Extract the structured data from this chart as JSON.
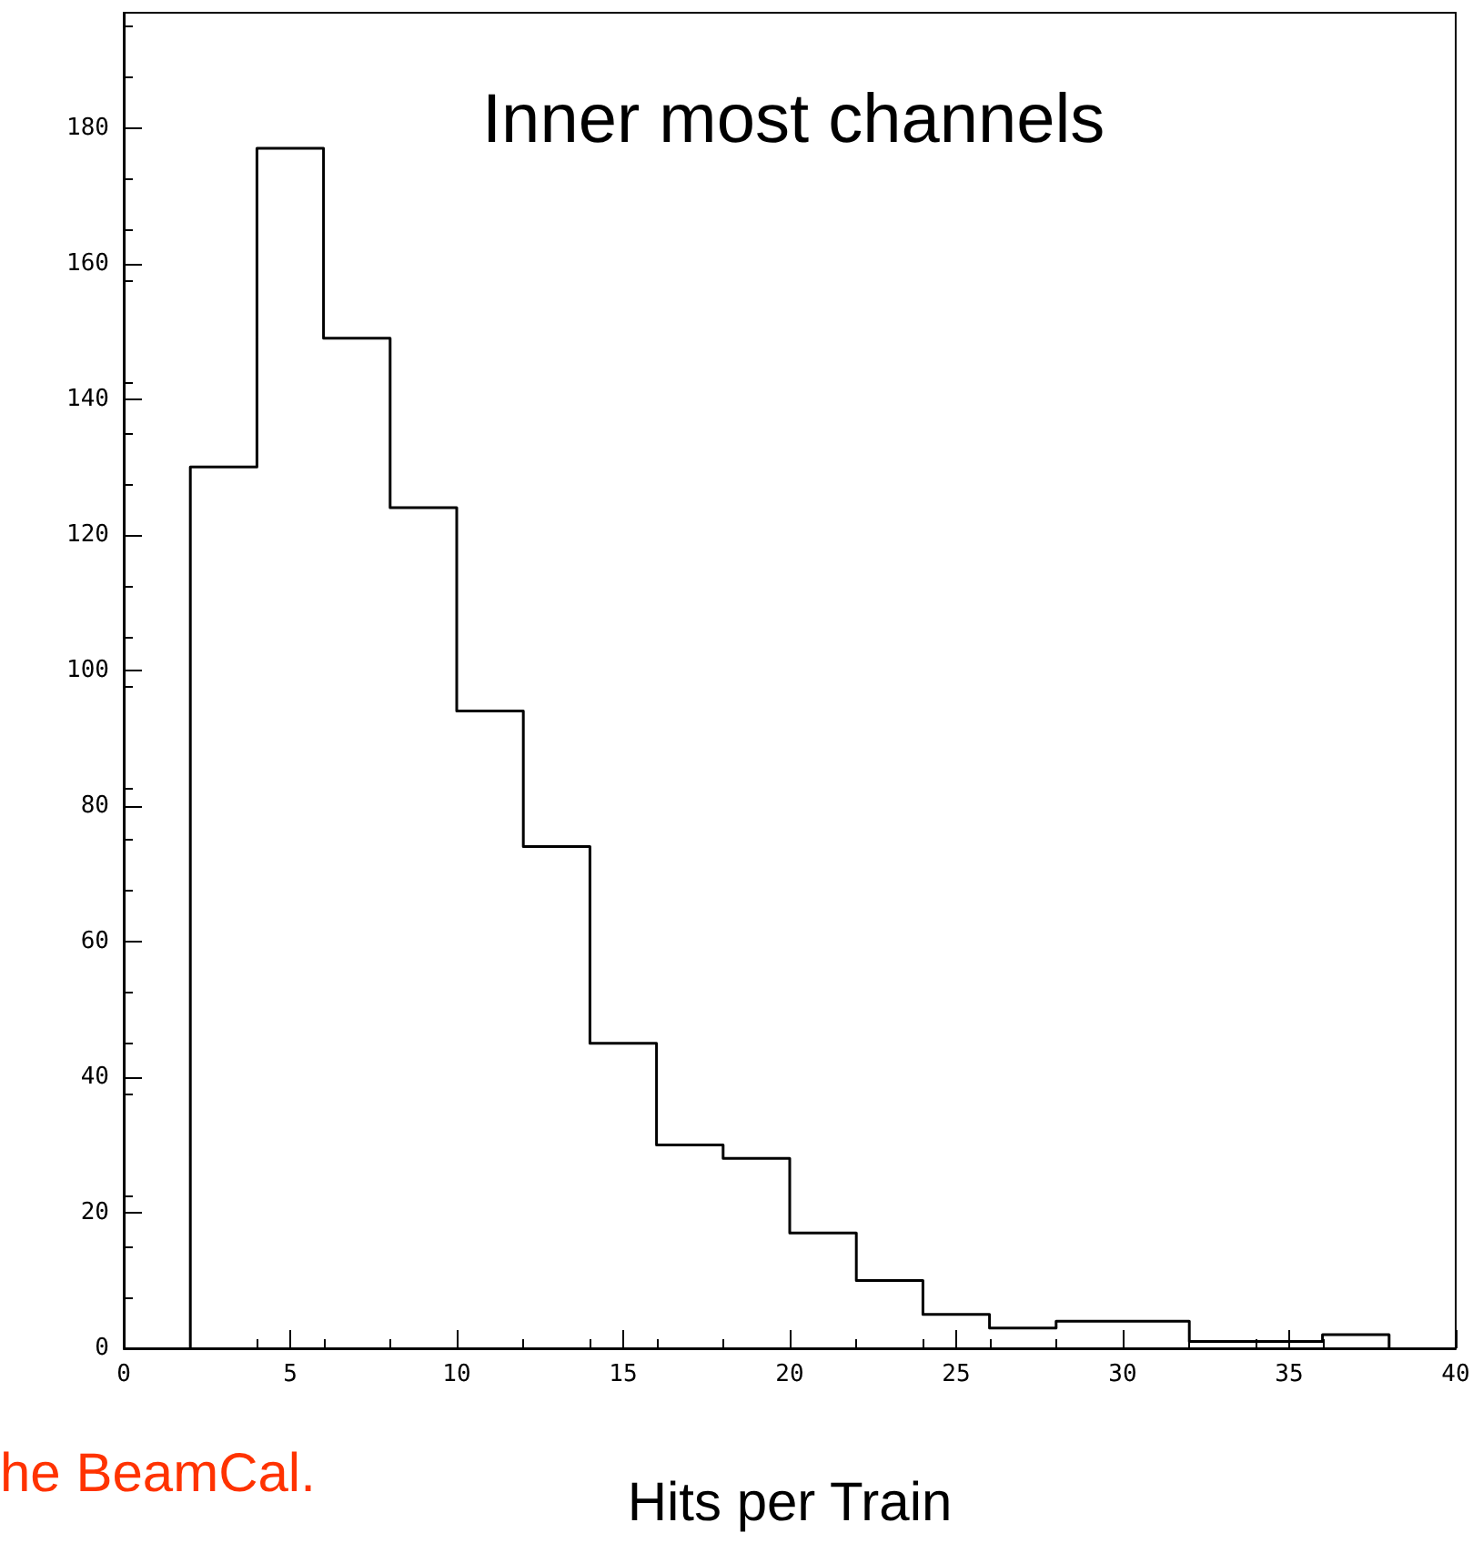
{
  "chart_data": {
    "type": "histogram",
    "title": "Inner most channels",
    "xlabel": "Hits per Train",
    "annotations": [
      "he BeamCal."
    ],
    "bins": [
      2,
      4,
      6,
      8,
      10,
      12,
      14,
      16,
      18,
      20,
      22,
      24,
      26,
      28,
      30,
      32,
      34,
      36,
      38
    ],
    "values": [
      130,
      177,
      149,
      124,
      94,
      74,
      45,
      30,
      28,
      17,
      10,
      5,
      3,
      4,
      4,
      1,
      1,
      2
    ],
    "color": "#000000",
    "xlim": [
      0,
      40
    ],
    "xticks": [
      0,
      5,
      10,
      15,
      20,
      25,
      30,
      35,
      40
    ],
    "ylim": [
      0,
      197
    ],
    "yticks": [
      0,
      20,
      40,
      60,
      80,
      100,
      120,
      140,
      160,
      180
    ],
    "grid": false
  }
}
